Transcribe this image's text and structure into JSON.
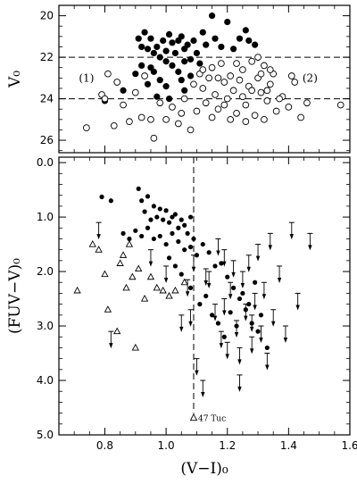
{
  "chart_data": [
    {
      "type": "scatter",
      "panel": "top",
      "ylabel": "V₀",
      "xlim": [
        0.65,
        1.6
      ],
      "ylim": [
        26.6,
        19.5
      ],
      "y_inverted": true,
      "yticks": [
        "20",
        "22",
        "24",
        "26"
      ],
      "grid": false,
      "reference_lines": [
        {
          "orientation": "horizontal",
          "y": 22.0,
          "style": "dashed"
        },
        {
          "orientation": "horizontal",
          "y": 24.0,
          "style": "dashed"
        }
      ],
      "annotations": [
        {
          "text": "(1)",
          "x": 0.74,
          "y": 23.0
        },
        {
          "text": "(2)",
          "x": 1.47,
          "y": 23.0
        }
      ],
      "series": [
        {
          "name": "",
          "marker": "filled-circle",
          "points": [
            [
              0.8,
              24.1
            ],
            [
              0.86,
              23.6
            ],
            [
              0.9,
              22.8
            ],
            [
              0.91,
              21.1
            ],
            [
              0.92,
              21.5
            ],
            [
              0.93,
              20.8
            ],
            [
              0.94,
              21.6
            ],
            [
              0.95,
              21.1
            ],
            [
              0.96,
              21.8
            ],
            [
              0.97,
              21.5
            ],
            [
              0.98,
              22.0
            ],
            [
              0.99,
              21.2
            ],
            [
              1.0,
              21.7
            ],
            [
              1.01,
              20.9
            ],
            [
              1.02,
              21.3
            ],
            [
              1.03,
              21.8
            ],
            [
              1.04,
              21.2
            ],
            [
              1.05,
              21.0
            ],
            [
              1.06,
              21.6
            ],
            [
              1.07,
              21.4
            ],
            [
              1.08,
              22.1
            ],
            [
              1.09,
              21.2
            ],
            [
              1.1,
              21.8
            ],
            [
              1.12,
              20.8
            ],
            [
              1.13,
              21.4
            ],
            [
              1.15,
              20.0
            ],
            [
              1.16,
              21.1
            ],
            [
              1.18,
              21.5
            ],
            [
              1.2,
              20.3
            ],
            [
              1.22,
              21.6
            ],
            [
              1.24,
              21.1
            ],
            [
              1.26,
              20.7
            ],
            [
              1.27,
              21.2
            ],
            [
              1.29,
              21.4
            ],
            [
              0.96,
              22.7
            ],
            [
              0.98,
              23.1
            ],
            [
              1.0,
              23.4
            ],
            [
              1.02,
              22.4
            ],
            [
              1.04,
              22.7
            ],
            [
              1.06,
              22.2
            ],
            [
              0.92,
              22.4
            ],
            [
              0.95,
              22.5
            ],
            [
              1.05,
              23.1
            ],
            [
              1.01,
              24.0
            ],
            [
              0.97,
              23.9
            ],
            [
              1.08,
              22.9
            ],
            [
              0.94,
              23.3
            ],
            [
              1.0,
              22.2
            ],
            [
              1.11,
              22.3
            ],
            [
              1.06,
              23.6
            ]
          ]
        },
        {
          "name": "",
          "marker": "open-circle",
          "points": [
            [
              0.74,
              25.4
            ],
            [
              0.79,
              23.8
            ],
            [
              0.8,
              24.0
            ],
            [
              0.81,
              22.8
            ],
            [
              0.83,
              25.3
            ],
            [
              0.84,
              23.2
            ],
            [
              0.86,
              24.3
            ],
            [
              0.88,
              25.1
            ],
            [
              0.9,
              23.7
            ],
            [
              0.92,
              24.9
            ],
            [
              0.93,
              22.9
            ],
            [
              0.95,
              25.0
            ],
            [
              0.96,
              25.9
            ],
            [
              0.98,
              24.2
            ],
            [
              1.0,
              25.0
            ],
            [
              1.02,
              24.4
            ],
            [
              1.04,
              25.2
            ],
            [
              1.06,
              24.0
            ],
            [
              1.08,
              25.5
            ],
            [
              1.1,
              24.6
            ],
            [
              1.11,
              22.8
            ],
            [
              1.12,
              23.5
            ],
            [
              1.13,
              24.2
            ],
            [
              1.14,
              23.0
            ],
            [
              1.15,
              22.5
            ],
            [
              1.16,
              23.8
            ],
            [
              1.17,
              24.5
            ],
            [
              1.18,
              22.3
            ],
            [
              1.19,
              23.2
            ],
            [
              1.2,
              24.0
            ],
            [
              1.21,
              22.9
            ],
            [
              1.22,
              23.6
            ],
            [
              1.23,
              24.7
            ],
            [
              1.24,
              23.1
            ],
            [
              1.25,
              22.6
            ],
            [
              1.26,
              24.3
            ],
            [
              1.27,
              23.4
            ],
            [
              1.28,
              22.2
            ],
            [
              1.29,
              24.8
            ],
            [
              1.3,
              23.0
            ],
            [
              1.31,
              23.7
            ],
            [
              1.32,
              22.4
            ],
            [
              1.33,
              24.1
            ],
            [
              1.34,
              23.3
            ],
            [
              1.35,
              22.8
            ],
            [
              1.36,
              24.6
            ],
            [
              1.38,
              23.9
            ],
            [
              1.4,
              24.4
            ],
            [
              1.42,
              23.2
            ],
            [
              1.44,
              24.9
            ],
            [
              1.46,
              24.2
            ],
            [
              1.57,
              24.3
            ],
            [
              1.3,
              22.0
            ],
            [
              1.31,
              22.8
            ],
            [
              1.33,
              23.6
            ],
            [
              1.21,
              25.0
            ],
            [
              1.15,
              24.9
            ],
            [
              1.26,
              25.1
            ],
            [
              1.09,
              23.3
            ],
            [
              1.17,
              23.0
            ],
            [
              1.23,
              22.3
            ],
            [
              1.25,
              23.9
            ],
            [
              1.32,
              25.0
            ],
            [
              1.37,
              24.0
            ],
            [
              1.41,
              22.9
            ],
            [
              1.05,
              24.7
            ],
            [
              1.12,
              22.6
            ],
            [
              1.19,
              24.3
            ],
            [
              1.28,
              23.6
            ],
            [
              1.34,
              22.6
            ]
          ]
        }
      ]
    },
    {
      "type": "scatter",
      "panel": "bottom",
      "xlabel": "(V−I)₀",
      "ylabel": "(FUV−V)₀",
      "xlim": [
        0.65,
        1.6
      ],
      "ylim": [
        5.0,
        -0.1
      ],
      "y_inverted": true,
      "xticks": [
        "0.8",
        "1.0",
        "1.2",
        "1.4",
        "1.6"
      ],
      "yticks": [
        "0.0",
        "1.0",
        "2.0",
        "3.0",
        "4.0",
        "5.0"
      ],
      "grid": false,
      "reference_lines": [
        {
          "orientation": "vertical",
          "x": 1.09,
          "style": "dashed",
          "label": "47 Tuc",
          "label_y": 4.7
        }
      ],
      "series": [
        {
          "name": "",
          "marker": "filled-dot",
          "points": [
            [
              0.79,
              0.63
            ],
            [
              0.82,
              0.7
            ],
            [
              0.91,
              0.48
            ],
            [
              0.92,
              0.7
            ],
            [
              0.93,
              0.9
            ],
            [
              0.94,
              0.62
            ],
            [
              0.95,
              1.05
            ],
            [
              0.96,
              0.8
            ],
            [
              0.97,
              1.0
            ],
            [
              0.98,
              0.85
            ],
            [
              0.99,
              1.05
            ],
            [
              1.0,
              0.88
            ],
            [
              1.01,
              1.1
            ],
            [
              1.02,
              1.0
            ],
            [
              1.03,
              0.95
            ],
            [
              1.04,
              1.2
            ],
            [
              1.05,
              1.05
            ],
            [
              1.06,
              1.15
            ],
            [
              1.07,
              1.3
            ],
            [
              1.08,
              1.0
            ],
            [
              1.09,
              1.4
            ],
            [
              0.86,
              1.3
            ],
            [
              0.88,
              1.4
            ],
            [
              0.9,
              1.25
            ],
            [
              0.92,
              1.35
            ],
            [
              0.94,
              1.2
            ],
            [
              0.96,
              1.4
            ],
            [
              0.98,
              1.35
            ],
            [
              1.0,
              1.5
            ],
            [
              1.02,
              1.3
            ],
            [
              1.04,
              1.45
            ],
            [
              1.06,
              1.6
            ],
            [
              1.08,
              1.55
            ],
            [
              1.1,
              1.7
            ],
            [
              1.12,
              1.5
            ],
            [
              1.14,
              1.65
            ],
            [
              1.16,
              1.9
            ],
            [
              1.18,
              1.85
            ],
            [
              1.2,
              2.1
            ],
            [
              1.22,
              2.3
            ],
            [
              1.24,
              2.5
            ],
            [
              1.26,
              2.7
            ],
            [
              1.28,
              2.95
            ],
            [
              1.3,
              3.1
            ],
            [
              1.05,
              2.05
            ],
            [
              1.08,
              2.3
            ],
            [
              1.11,
              2.6
            ],
            [
              1.13,
              2.45
            ],
            [
              1.15,
              2.8
            ],
            [
              1.17,
              2.95
            ],
            [
              1.19,
              3.2
            ],
            [
              1.21,
              2.75
            ],
            [
              1.23,
              3.0
            ],
            [
              1.25,
              2.4
            ],
            [
              1.27,
              2.6
            ],
            [
              1.29,
              2.2
            ],
            [
              1.31,
              2.8
            ],
            [
              1.33,
              3.4
            ],
            [
              1.01,
              1.75
            ],
            [
              1.03,
              1.9
            ]
          ]
        },
        {
          "name": "",
          "marker": "open-triangle",
          "points": [
            [
              0.71,
              2.35
            ],
            [
              0.76,
              1.5
            ],
            [
              0.78,
              1.6
            ],
            [
              0.8,
              2.05
            ],
            [
              0.81,
              2.7
            ],
            [
              0.84,
              3.1
            ],
            [
              0.85,
              1.85
            ],
            [
              0.86,
              1.7
            ],
            [
              0.87,
              2.3
            ],
            [
              0.88,
              1.5
            ],
            [
              0.89,
              2.1
            ],
            [
              0.9,
              3.4
            ],
            [
              0.91,
              1.95
            ],
            [
              0.93,
              2.5
            ],
            [
              0.95,
              2.1
            ],
            [
              0.97,
              2.3
            ],
            [
              0.99,
              2.35
            ],
            [
              1.01,
              2.45
            ],
            [
              1.03,
              2.35
            ],
            [
              1.06,
              2.2
            ]
          ]
        },
        {
          "name": "",
          "marker": "upper-limit-arrow",
          "points": [
            [
              0.78,
              1.1
            ],
            [
              0.82,
              3.1
            ],
            [
              0.95,
              1.6
            ],
            [
              1.0,
              1.9
            ],
            [
              1.05,
              2.8
            ],
            [
              1.07,
              2.15
            ],
            [
              1.09,
              1.7
            ],
            [
              1.1,
              3.6
            ],
            [
              1.12,
              4.0
            ],
            [
              1.14,
              2.0
            ],
            [
              1.16,
              2.6
            ],
            [
              1.17,
              1.4
            ],
            [
              1.18,
              3.1
            ],
            [
              1.19,
              2.5
            ],
            [
              1.2,
              3.3
            ],
            [
              1.21,
              2.2
            ],
            [
              1.22,
              1.8
            ],
            [
              1.23,
              2.9
            ],
            [
              1.24,
              3.4
            ],
            [
              1.25,
              2.0
            ],
            [
              1.26,
              2.6
            ],
            [
              1.27,
              1.7
            ],
            [
              1.28,
              3.2
            ],
            [
              1.29,
              2.4
            ],
            [
              1.3,
              1.5
            ],
            [
              1.31,
              3.0
            ],
            [
              1.32,
              2.2
            ],
            [
              1.33,
              3.5
            ],
            [
              1.34,
              1.3
            ],
            [
              1.35,
              2.7
            ],
            [
              1.37,
              1.9
            ],
            [
              1.39,
              3.0
            ],
            [
              1.41,
              1.1
            ],
            [
              1.43,
              2.4
            ],
            [
              1.47,
              1.3
            ],
            [
              1.13,
              1.95
            ],
            [
              1.08,
              2.7
            ],
            [
              1.24,
              3.9
            ],
            [
              1.19,
              1.6
            ],
            [
              1.28,
              2.8
            ]
          ]
        }
      ]
    }
  ]
}
